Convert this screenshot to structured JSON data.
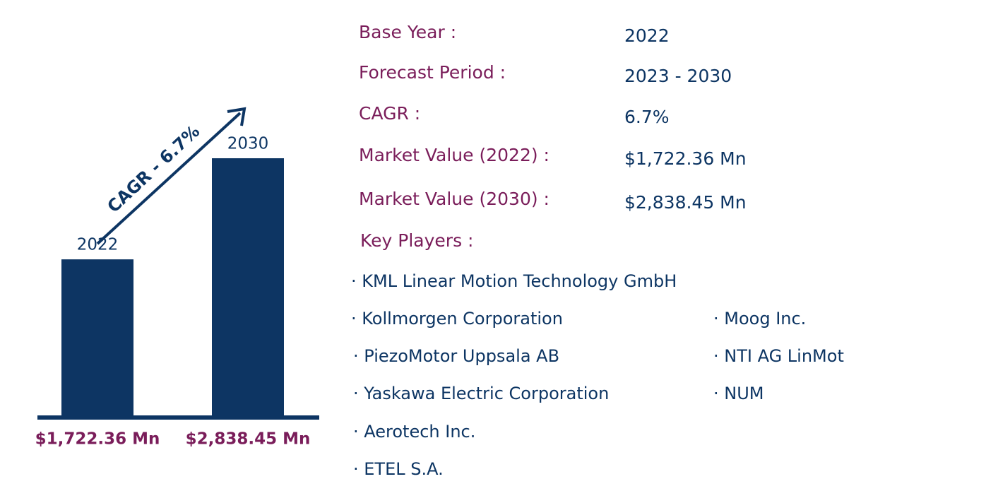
{
  "chart_data": {
    "type": "bar",
    "categories": [
      "2022",
      "2030"
    ],
    "values": [
      1722.36,
      2838.45
    ],
    "value_labels": [
      "$1,722.36 Mn",
      "$2,838.45 Mn"
    ],
    "color": "#0d3563",
    "annotation": "CAGR - 6.7%"
  },
  "summary": {
    "rows": [
      [
        "Base Year :",
        "2022"
      ],
      [
        "Forecast Period :",
        "2023 - 2030"
      ],
      [
        "CAGR :",
        "6.7%"
      ],
      [
        "Market Value (2022) :",
        "$1,722.36 Mn"
      ],
      [
        "Market Value (2030) :",
        "$2,838.45 Mn"
      ]
    ]
  },
  "key_players": {
    "title": "Key Players :",
    "items": [
      "· KML Linear Motion Technology GmbH",
      "· Kollmorgen Corporation",
      "· Moog Inc.",
      "· PiezoMotor Uppsala AB",
      "· NTI AG LinMot",
      "· Yaskawa Electric Corporation",
      "· NUM",
      "· Aerotech Inc.",
      "· ETEL S.A."
    ]
  }
}
